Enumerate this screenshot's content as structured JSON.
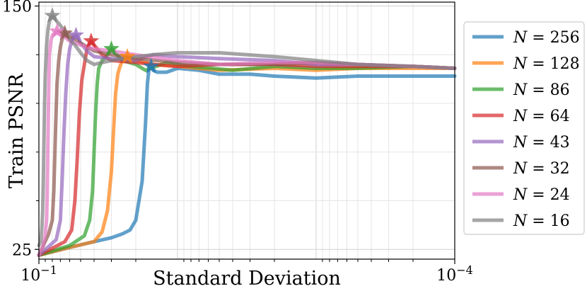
{
  "chart_data": {
    "type": "line",
    "xlabel": "Standard Deviation",
    "ylabel": "Train PSNR",
    "x_scale": "log",
    "x_reversed": true,
    "xlim": [
      0.1,
      0.0001
    ],
    "ylim": [
      20,
      152
    ],
    "x_ticks": [
      {
        "value": 0.1,
        "base": "10",
        "exp": "−1"
      },
      {
        "value": 0.0001,
        "base": "10",
        "exp": "−4"
      }
    ],
    "y_ticks": [
      {
        "value": 25,
        "label": "25"
      },
      {
        "value": 150,
        "label": "150"
      }
    ],
    "y_minor_ticks": [
      50,
      75,
      100,
      125
    ],
    "grid": true,
    "legend_position": "right",
    "series": [
      {
        "name": "N = 256",
        "label_lhs": "N",
        "label_rhs": "256",
        "color": "#1f77b4",
        "x": [
          0.1,
          0.06,
          0.04,
          0.03,
          0.025,
          0.022,
          0.02,
          0.018,
          0.017,
          0.0165,
          0.016,
          0.0155,
          0.015,
          0.014,
          0.013,
          0.012,
          0.01,
          0.007,
          0.005,
          0.003,
          0.002,
          0.001,
          0.0005,
          0.0002,
          0.0001
        ],
        "y": [
          22,
          26,
          29,
          31,
          33,
          35,
          40,
          60,
          90,
          110,
          119,
          119,
          117,
          116,
          116,
          116,
          118,
          117,
          115,
          115,
          114,
          113,
          114,
          114,
          114
        ]
      },
      {
        "name": "N = 128",
        "label_lhs": "N",
        "label_rhs": "128",
        "color": "#ff7f0e",
        "x": [
          0.1,
          0.06,
          0.04,
          0.035,
          0.032,
          0.03,
          0.029,
          0.028,
          0.027,
          0.026,
          0.025,
          0.023,
          0.02,
          0.015,
          0.01,
          0.005,
          0.002,
          0.001,
          0.0005,
          0.0002,
          0.0001
        ],
        "y": [
          22,
          26,
          29,
          34,
          45,
          65,
          85,
          105,
          115,
          119,
          122,
          124,
          122,
          120,
          119,
          117,
          118,
          117,
          118,
          118,
          118
        ]
      },
      {
        "name": "N = 86",
        "label_lhs": "N",
        "label_rhs": "86",
        "color": "#2ca02c",
        "x": [
          0.1,
          0.06,
          0.047,
          0.043,
          0.041,
          0.04,
          0.039,
          0.038,
          0.037,
          0.035,
          0.032,
          0.03,
          0.025,
          0.02,
          0.017,
          0.012,
          0.008,
          0.004,
          0.002,
          0.001,
          0.0005,
          0.0002,
          0.0001
        ],
        "y": [
          22,
          27,
          32,
          40,
          55,
          75,
          95,
          110,
          118,
          122,
          125,
          128,
          122,
          120,
          117,
          121,
          119,
          117,
          119,
          118,
          118,
          119,
          118
        ]
      },
      {
        "name": "N = 64",
        "label_lhs": "N",
        "label_rhs": "64",
        "color": "#d62728",
        "x": [
          0.1,
          0.065,
          0.058,
          0.055,
          0.053,
          0.051,
          0.049,
          0.047,
          0.045,
          0.042,
          0.04,
          0.035,
          0.03,
          0.02,
          0.015,
          0.01,
          0.005,
          0.002,
          0.001,
          0.0005,
          0.0002,
          0.0001
        ],
        "y": [
          22,
          29,
          35,
          50,
          70,
          95,
          112,
          120,
          128,
          132,
          130,
          125,
          122,
          121,
          120,
          119,
          120,
          120,
          119,
          119,
          119,
          118
        ]
      },
      {
        "name": "N = 43",
        "label_lhs": "N",
        "label_rhs": "43",
        "color": "#9467bd",
        "x": [
          0.1,
          0.075,
          0.07,
          0.068,
          0.066,
          0.064,
          0.062,
          0.06,
          0.057,
          0.054,
          0.052,
          0.05,
          0.045,
          0.04,
          0.03,
          0.02,
          0.015,
          0.01,
          0.005,
          0.002,
          0.001,
          0.0005,
          0.0002,
          0.0001
        ],
        "y": [
          22,
          30,
          40,
          60,
          85,
          105,
          120,
          128,
          134,
          135,
          134,
          131,
          127,
          124,
          123,
          122,
          125,
          124,
          123,
          122,
          120,
          120,
          119,
          118
        ]
      },
      {
        "name": "N = 32",
        "label_lhs": "N",
        "label_rhs": "32",
        "color": "#8c564b",
        "x": [
          0.1,
          0.085,
          0.08,
          0.078,
          0.076,
          0.074,
          0.072,
          0.07,
          0.068,
          0.065,
          0.062,
          0.058,
          0.055,
          0.05,
          0.04,
          0.03,
          0.02,
          0.01,
          0.005,
          0.002,
          0.001,
          0.0005,
          0.0002,
          0.0001
        ],
        "y": [
          22,
          33,
          40,
          55,
          85,
          110,
          122,
          129,
          133,
          136,
          135,
          134,
          133,
          131,
          127,
          125,
          123,
          121,
          120,
          120,
          121,
          120,
          119,
          118
        ]
      },
      {
        "name": "N = 24",
        "label_lhs": "N",
        "label_rhs": "24",
        "color": "#e377c2",
        "x": [
          0.1,
          0.093,
          0.09,
          0.088,
          0.087,
          0.086,
          0.085,
          0.084,
          0.082,
          0.08,
          0.077,
          0.074,
          0.07,
          0.065,
          0.06,
          0.05,
          0.04,
          0.03,
          0.02,
          0.01,
          0.005,
          0.002,
          0.001,
          0.0005,
          0.0002,
          0.0001
        ],
        "y": [
          22,
          27,
          33,
          40,
          55,
          80,
          105,
          125,
          132,
          135,
          136,
          137,
          136,
          134,
          132,
          130,
          128,
          127,
          125,
          122,
          120,
          121,
          121,
          120,
          119,
          118
        ]
      },
      {
        "name": "N = 16",
        "label_lhs": "N",
        "label_rhs": "16",
        "color": "#7f7f7f",
        "x": [
          0.1,
          0.097,
          0.096,
          0.095,
          0.094,
          0.093,
          0.092,
          0.091,
          0.09,
          0.088,
          0.086,
          0.084,
          0.082,
          0.08,
          0.077,
          0.074,
          0.07,
          0.065,
          0.06,
          0.055,
          0.05,
          0.045,
          0.04,
          0.035,
          0.03,
          0.025,
          0.02,
          0.015,
          0.01,
          0.005,
          0.002,
          0.001,
          0.0005,
          0.0002,
          0.0001
        ],
        "y": [
          27,
          29,
          33,
          37,
          45,
          60,
          80,
          100,
          115,
          130,
          138,
          142,
          144,
          145,
          144,
          142,
          140,
          137,
          133,
          130,
          126,
          122,
          120,
          121,
          122,
          123,
          124,
          125,
          126,
          126,
          124,
          122,
          120,
          119,
          118
        ]
      }
    ],
    "peak_markers": [
      {
        "series": "N = 256",
        "x": 0.0155,
        "y": 119
      },
      {
        "series": "N = 128",
        "x": 0.023,
        "y": 124
      },
      {
        "series": "N = 86",
        "x": 0.03,
        "y": 128
      },
      {
        "series": "N = 64",
        "x": 0.042,
        "y": 132
      },
      {
        "series": "N = 43",
        "x": 0.054,
        "y": 135
      },
      {
        "series": "N = 32",
        "x": 0.065,
        "y": 136
      },
      {
        "series": "N = 24",
        "x": 0.074,
        "y": 137
      },
      {
        "series": "N = 16",
        "x": 0.08,
        "y": 145
      }
    ]
  }
}
